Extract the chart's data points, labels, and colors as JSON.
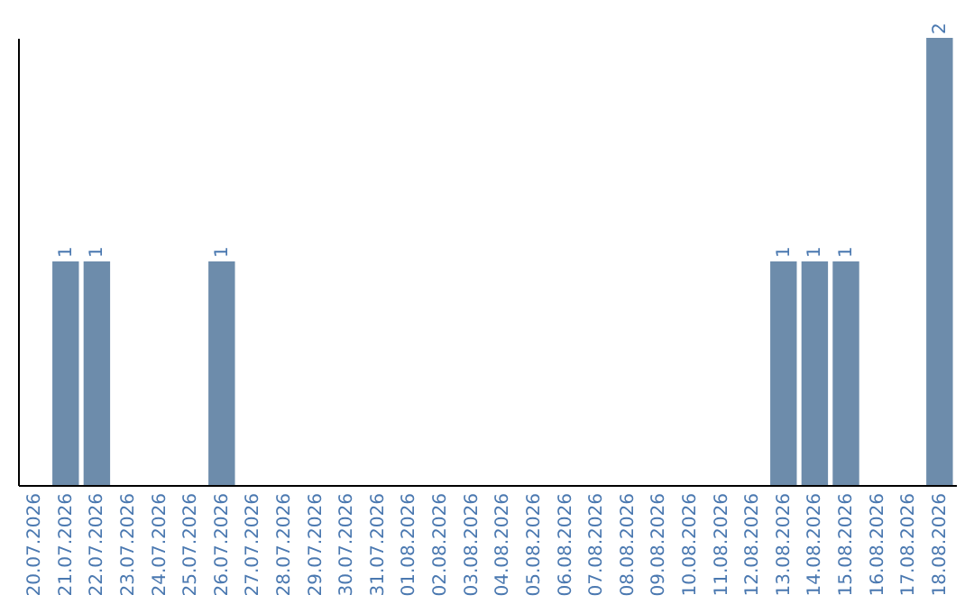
{
  "chart_data": {
    "type": "bar",
    "categories": [
      "20.07.2026",
      "21.07.2026",
      "22.07.2026",
      "23.07.2026",
      "24.07.2026",
      "25.07.2026",
      "26.07.2026",
      "27.07.2026",
      "28.07.2026",
      "29.07.2026",
      "30.07.2026",
      "31.07.2026",
      "01.08.2026",
      "02.08.2026",
      "03.08.2026",
      "04.08.2026",
      "05.08.2026",
      "06.08.2026",
      "07.08.2026",
      "08.08.2026",
      "09.08.2026",
      "10.08.2026",
      "11.08.2026",
      "12.08.2026",
      "13.08.2026",
      "14.08.2026",
      "15.08.2026",
      "16.08.2026",
      "17.08.2026",
      "18.08.2026"
    ],
    "values": [
      0,
      1,
      1,
      0,
      0,
      0,
      1,
      0,
      0,
      0,
      0,
      0,
      0,
      0,
      0,
      0,
      0,
      0,
      0,
      0,
      0,
      0,
      0,
      0,
      1,
      1,
      1,
      0,
      0,
      2
    ],
    "value_labels": [
      null,
      "1",
      "1",
      null,
      null,
      null,
      "1",
      null,
      null,
      null,
      null,
      null,
      null,
      null,
      null,
      null,
      null,
      null,
      null,
      null,
      null,
      null,
      null,
      null,
      "1",
      "1",
      "1",
      null,
      null,
      "2"
    ],
    "color": "#6d8cab",
    "tick_labels": "x"
  }
}
